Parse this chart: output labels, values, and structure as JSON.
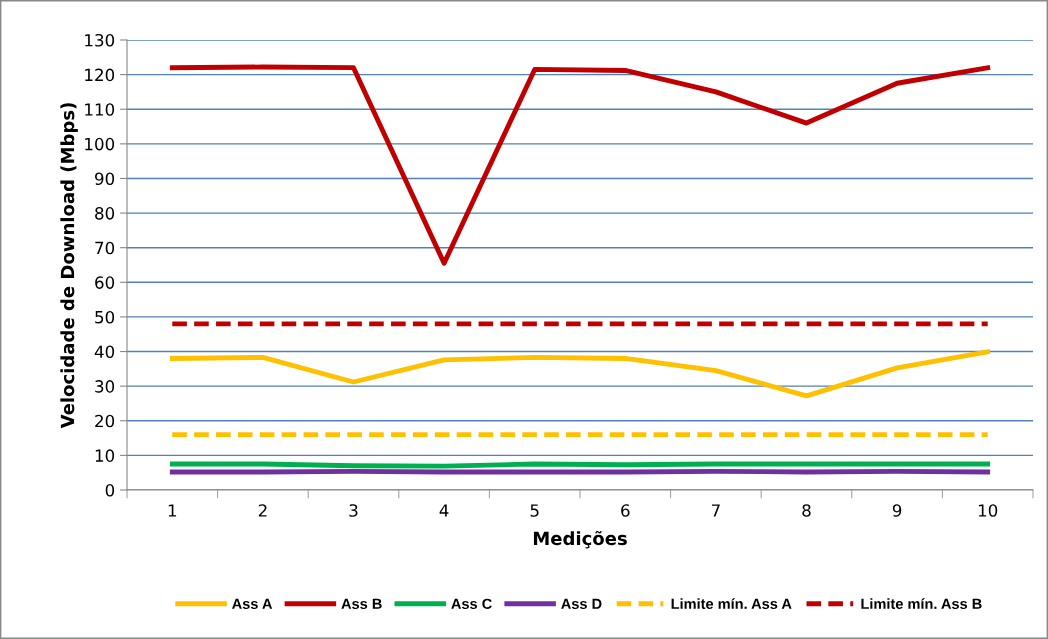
{
  "chart_data": {
    "type": "line",
    "xlabel": "Medições",
    "ylabel": "Velocidade de Download (Mbps)",
    "categories": [
      "1",
      "2",
      "3",
      "4",
      "5",
      "6",
      "7",
      "8",
      "9",
      "10"
    ],
    "ylim": [
      0,
      130
    ],
    "yticks": [
      0,
      10,
      20,
      30,
      40,
      50,
      60,
      70,
      80,
      90,
      100,
      110,
      120,
      130
    ],
    "grid": "y",
    "legend": "bottom",
    "marker": "none",
    "series": [
      {
        "name": "Ass A",
        "color": "#ffc000",
        "values": [
          38,
          38.3,
          31.2,
          37.6,
          38.3,
          38,
          34.5,
          27.2,
          35.3,
          39.9
        ]
      },
      {
        "name": "Ass B",
        "color": "#c00000",
        "values": [
          122,
          122.2,
          122,
          65.5,
          121.5,
          121.2,
          115,
          106,
          117.5,
          122
        ]
      },
      {
        "name": "Ass C",
        "color": "#00b050",
        "values": [
          7.5,
          7.5,
          7,
          6.9,
          7.5,
          7.3,
          7.5,
          7.5,
          7.5,
          7.5
        ]
      },
      {
        "name": "Ass D",
        "color": "#7030a0",
        "values": [
          5.2,
          5.2,
          5.4,
          5.2,
          5.2,
          5.2,
          5.4,
          5.2,
          5.4,
          5.2
        ]
      },
      {
        "name": "Limite mín. Ass A",
        "color": "#ffc000",
        "line_style": "dashed",
        "values": [
          16,
          16,
          16,
          16,
          16,
          16,
          16,
          16,
          16,
          16
        ]
      },
      {
        "name": "Limite mín. Ass B",
        "color": "#c00000",
        "line_style": "dashed",
        "values": [
          48,
          48,
          48,
          48,
          48,
          48,
          48,
          48,
          48,
          48
        ]
      }
    ]
  }
}
